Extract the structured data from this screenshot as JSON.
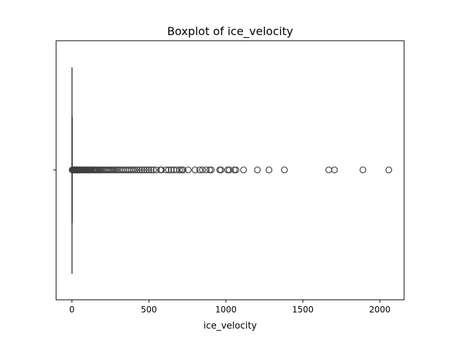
{
  "chart_data": {
    "type": "box",
    "title": "Boxplot of ice_velocity",
    "xlabel": "ice_velocity",
    "ylabel": "",
    "xlim": [
      -102.5,
      2157.5
    ],
    "xticks": [
      0,
      500,
      1000,
      1500,
      2000
    ],
    "xtick_labels": [
      "0",
      "500",
      "1000",
      "1500",
      "2000"
    ],
    "orientation": "horizontal",
    "box": {
      "q1": 0,
      "median": 0,
      "q3": 0.5,
      "whisker_low": 0,
      "whisker_high": 1
    },
    "outliers": [
      2,
      4,
      6,
      8,
      10,
      13,
      16,
      19,
      22,
      25,
      28,
      31,
      34,
      37,
      40,
      44,
      48,
      52,
      56,
      60,
      65,
      70,
      75,
      80,
      85,
      90,
      96,
      102,
      108,
      114,
      120,
      127,
      134,
      141,
      148,
      155,
      163,
      171,
      179,
      187,
      195,
      204,
      213,
      222,
      231,
      240,
      250,
      260,
      270,
      280,
      290,
      300,
      312,
      324,
      336,
      348,
      360,
      372,
      385,
      398,
      411,
      425,
      440,
      455,
      470,
      485,
      500,
      515,
      530,
      548,
      575,
      582,
      612,
      628,
      645,
      662,
      680,
      700,
      712,
      722,
      755,
      800,
      830,
      848,
      872,
      895,
      905,
      960,
      968,
      1012,
      1022,
      1055,
      1065,
      1115,
      1205,
      1280,
      1380,
      1668,
      1705,
      1890,
      2058
    ],
    "colors": {
      "box_line": "#3f3f3f",
      "outlier": "#3f3f3f"
    }
  }
}
